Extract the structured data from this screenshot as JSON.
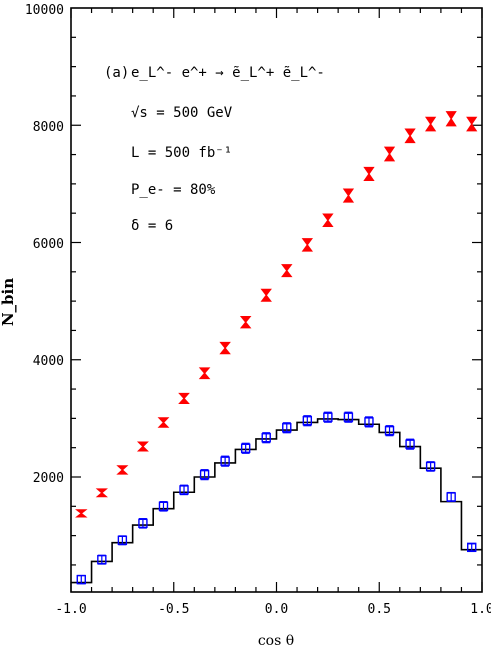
{
  "chart_data": {
    "type": "scatter",
    "title": "",
    "xlabel": "cos θ",
    "ylabel": "N_bin",
    "xlim": [
      -1.0,
      1.0
    ],
    "ylim": [
      0,
      10000
    ],
    "xticks": [
      "-1.0",
      "-0.5",
      "0.0",
      "0.5",
      "1.0"
    ],
    "yticks": [
      "2000",
      "4000",
      "6000",
      "8000",
      "10000"
    ],
    "annotations": {
      "process_tag": "(a)",
      "process": "e_L^- e^+ → ẽ_L^+ ẽ_L^-",
      "sqrt_s": "√s = 500 GeV",
      "lumi": "L = 500 fb⁻¹",
      "polarization": "P_e- = 80%",
      "delta": "δ = 6"
    },
    "series": [
      {
        "marker": "red-hourglass",
        "color": "#ff0000",
        "x": [
          -0.95,
          -0.85,
          -0.75,
          -0.65,
          -0.55,
          -0.45,
          -0.35,
          -0.25,
          -0.15,
          -0.05,
          0.05,
          0.15,
          0.25,
          0.35,
          0.45,
          0.55,
          0.65,
          0.75,
          0.85,
          0.95
        ],
        "y": [
          1380,
          1730,
          2120,
          2520,
          2930,
          3340,
          3770,
          4200,
          4640,
          5100,
          5520,
          5960,
          6380,
          6800,
          7170,
          7510,
          7820,
          8020,
          8110,
          8020
        ],
        "err": [
          60,
          65,
          70,
          75,
          80,
          85,
          90,
          95,
          95,
          100,
          100,
          105,
          105,
          110,
          110,
          115,
          115,
          115,
          120,
          115
        ]
      },
      {
        "marker": "blue-square",
        "color": "#0000ff",
        "x": [
          -0.95,
          -0.85,
          -0.75,
          -0.65,
          -0.55,
          -0.45,
          -0.35,
          -0.25,
          -0.15,
          -0.05,
          0.05,
          0.15,
          0.25,
          0.35,
          0.45,
          0.55,
          0.65,
          0.75,
          0.85,
          0.95
        ],
        "y": [
          250,
          590,
          920,
          1210,
          1500,
          1780,
          2040,
          2270,
          2490,
          2670,
          2840,
          2960,
          3020,
          3020,
          2940,
          2790,
          2560,
          2180,
          1660,
          800
        ],
        "err": [
          70,
          75,
          75,
          80,
          80,
          80,
          85,
          85,
          85,
          85,
          85,
          85,
          85,
          85,
          85,
          85,
          85,
          80,
          75,
          60
        ]
      }
    ],
    "histogram": {
      "color": "#000000",
      "bin_edges": [
        -1.0,
        -0.9,
        -0.8,
        -0.7,
        -0.6,
        -0.5,
        -0.4,
        -0.3,
        -0.2,
        -0.1,
        0.0,
        0.1,
        0.2,
        0.3,
        0.4,
        0.5,
        0.6,
        0.7,
        0.8,
        0.9,
        1.0
      ],
      "values": [
        200,
        560,
        880,
        1180,
        1460,
        1740,
        2000,
        2240,
        2470,
        2650,
        2800,
        2930,
        2990,
        2980,
        2900,
        2760,
        2520,
        2150,
        1580,
        760
      ]
    }
  }
}
